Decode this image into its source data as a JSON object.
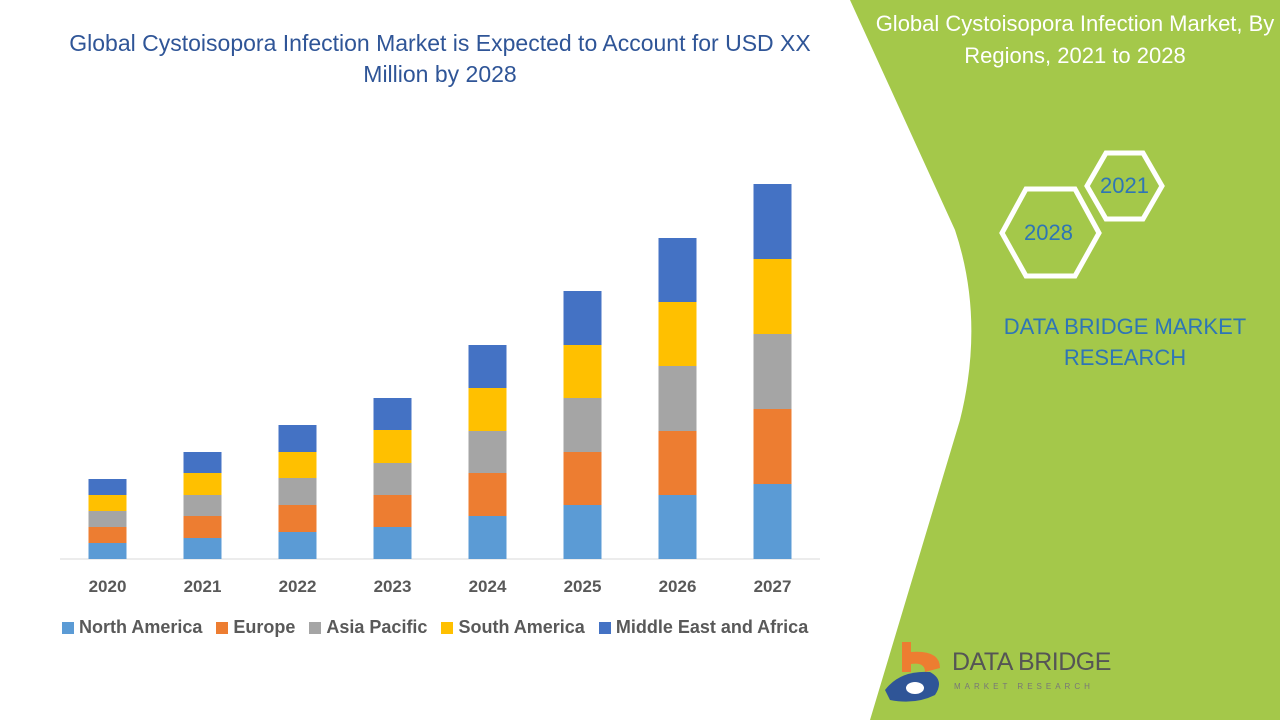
{
  "title": "Global Cystoisopora Infection Market is Expected to Account for USD XX Million by 2028",
  "side_panel": {
    "title": "Global Cystoisopora Infection Market, By Regions, 2021 to 2028",
    "hex_years": [
      "2021",
      "2028"
    ],
    "brand": "DATA BRIDGE MARKET RESEARCH",
    "accent_color": "#a4c84a"
  },
  "logo": {
    "name": "DATA BRIDGE",
    "tagline": "MARKET RESEARCH"
  },
  "watermark": "DATA BRIDGE MARKET RESEARCH",
  "chart_data": {
    "type": "bar",
    "stacked": true,
    "title": "Global Cystoisopora Infection Market is Expected to Account for USD XX Million by 2028",
    "xlabel": "",
    "ylabel": "",
    "categories": [
      "2020",
      "2021",
      "2022",
      "2023",
      "2024",
      "2025",
      "2026",
      "2027"
    ],
    "ylim": [
      0,
      400
    ],
    "grid": false,
    "legend_position": "bottom",
    "series": [
      {
        "name": "North America",
        "color": "#5b9bd5",
        "values": [
          16,
          21,
          27,
          32,
          43,
          54,
          64,
          75
        ]
      },
      {
        "name": "Europe",
        "color": "#ed7d31",
        "values": [
          16,
          22,
          27,
          32,
          43,
          53,
          64,
          75
        ]
      },
      {
        "name": "Asia Pacific",
        "color": "#a5a5a5",
        "values": [
          16,
          21,
          27,
          32,
          42,
          54,
          65,
          75
        ]
      },
      {
        "name": "South America",
        "color": "#ffc000",
        "values": [
          16,
          22,
          26,
          33,
          43,
          53,
          64,
          75
        ]
      },
      {
        "name": "Middle East and Africa",
        "color": "#4472c4",
        "values": [
          16,
          21,
          27,
          32,
          43,
          54,
          64,
          75
        ]
      }
    ]
  }
}
